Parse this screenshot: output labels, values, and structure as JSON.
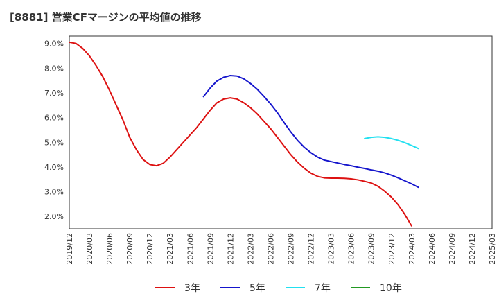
{
  "chart_data": {
    "type": "line",
    "title": "[8881]  営業CFマージンの平均値の推移",
    "xlabel": "",
    "ylabel": "",
    "ylim": [
      1.5,
      9.3
    ],
    "grid": true,
    "legend_position": "bottom",
    "y_ticks": [
      "2.0%",
      "3.0%",
      "4.0%",
      "5.0%",
      "6.0%",
      "7.0%",
      "8.0%",
      "9.0%"
    ],
    "y_tick_values": [
      2.0,
      3.0,
      4.0,
      5.0,
      6.0,
      7.0,
      8.0,
      9.0
    ],
    "x_ticks": [
      "2019/12",
      "2020/03",
      "2020/06",
      "2020/09",
      "2020/12",
      "2021/03",
      "2021/06",
      "2021/09",
      "2021/12",
      "2022/03",
      "2022/06",
      "2022/09",
      "2022/12",
      "2023/03",
      "2023/06",
      "2023/09",
      "2023/12",
      "2024/03",
      "2024/06",
      "2024/09",
      "2024/12",
      "2025/03"
    ],
    "series": [
      {
        "name": "3年",
        "color": "#dd1111",
        "points": [
          [
            "2019/12",
            9.05
          ],
          [
            "2020/01",
            9.0
          ],
          [
            "2020/02",
            8.8
          ],
          [
            "2020/03",
            8.5
          ],
          [
            "2020/04",
            8.1
          ],
          [
            "2020/05",
            7.65
          ],
          [
            "2020/06",
            7.1
          ],
          [
            "2020/07",
            6.5
          ],
          [
            "2020/08",
            5.9
          ],
          [
            "2020/09",
            5.2
          ],
          [
            "2020/10",
            4.7
          ],
          [
            "2020/11",
            4.3
          ],
          [
            "2020/12",
            4.1
          ],
          [
            "2021/01",
            4.05
          ],
          [
            "2021/02",
            4.15
          ],
          [
            "2021/03",
            4.4
          ],
          [
            "2021/04",
            4.7
          ],
          [
            "2021/05",
            5.0
          ],
          [
            "2021/06",
            5.3
          ],
          [
            "2021/07",
            5.6
          ],
          [
            "2021/08",
            5.95
          ],
          [
            "2021/09",
            6.3
          ],
          [
            "2021/10",
            6.6
          ],
          [
            "2021/11",
            6.75
          ],
          [
            "2021/12",
            6.8
          ],
          [
            "2022/01",
            6.75
          ],
          [
            "2022/02",
            6.6
          ],
          [
            "2022/03",
            6.4
          ],
          [
            "2022/04",
            6.15
          ],
          [
            "2022/05",
            5.85
          ],
          [
            "2022/06",
            5.55
          ],
          [
            "2022/07",
            5.2
          ],
          [
            "2022/08",
            4.85
          ],
          [
            "2022/09",
            4.5
          ],
          [
            "2022/10",
            4.2
          ],
          [
            "2022/11",
            3.95
          ],
          [
            "2022/12",
            3.75
          ],
          [
            "2023/01",
            3.62
          ],
          [
            "2023/02",
            3.56
          ],
          [
            "2023/03",
            3.55
          ],
          [
            "2023/04",
            3.55
          ],
          [
            "2023/05",
            3.54
          ],
          [
            "2023/06",
            3.52
          ],
          [
            "2023/07",
            3.48
          ],
          [
            "2023/08",
            3.42
          ],
          [
            "2023/09",
            3.35
          ],
          [
            "2023/10",
            3.22
          ],
          [
            "2023/11",
            3.02
          ],
          [
            "2023/12",
            2.78
          ],
          [
            "2024/01",
            2.47
          ],
          [
            "2024/02",
            2.08
          ],
          [
            "2024/03",
            1.62
          ]
        ]
      },
      {
        "name": "5年",
        "color": "#1515cc",
        "points": [
          [
            "2021/08",
            6.85
          ],
          [
            "2021/09",
            7.2
          ],
          [
            "2021/10",
            7.48
          ],
          [
            "2021/11",
            7.63
          ],
          [
            "2021/12",
            7.7
          ],
          [
            "2022/01",
            7.68
          ],
          [
            "2022/02",
            7.57
          ],
          [
            "2022/03",
            7.38
          ],
          [
            "2022/04",
            7.15
          ],
          [
            "2022/05",
            6.86
          ],
          [
            "2022/06",
            6.55
          ],
          [
            "2022/07",
            6.2
          ],
          [
            "2022/08",
            5.8
          ],
          [
            "2022/09",
            5.42
          ],
          [
            "2022/10",
            5.08
          ],
          [
            "2022/11",
            4.8
          ],
          [
            "2022/12",
            4.58
          ],
          [
            "2023/01",
            4.4
          ],
          [
            "2023/02",
            4.28
          ],
          [
            "2023/03",
            4.22
          ],
          [
            "2023/04",
            4.16
          ],
          [
            "2023/05",
            4.1
          ],
          [
            "2023/06",
            4.05
          ],
          [
            "2023/07",
            3.99
          ],
          [
            "2023/08",
            3.94
          ],
          [
            "2023/09",
            3.88
          ],
          [
            "2023/10",
            3.83
          ],
          [
            "2023/11",
            3.76
          ],
          [
            "2023/12",
            3.67
          ],
          [
            "2024/01",
            3.56
          ],
          [
            "2024/02",
            3.44
          ],
          [
            "2024/03",
            3.32
          ],
          [
            "2024/04",
            3.18
          ]
        ]
      },
      {
        "name": "7年",
        "color": "#22e0f0",
        "points": [
          [
            "2023/08",
            5.15
          ],
          [
            "2023/09",
            5.2
          ],
          [
            "2023/10",
            5.22
          ],
          [
            "2023/11",
            5.2
          ],
          [
            "2023/12",
            5.15
          ],
          [
            "2024/01",
            5.08
          ],
          [
            "2024/02",
            4.98
          ],
          [
            "2024/03",
            4.87
          ],
          [
            "2024/04",
            4.75
          ]
        ]
      },
      {
        "name": "10年",
        "color": "#229922",
        "points": []
      }
    ]
  }
}
